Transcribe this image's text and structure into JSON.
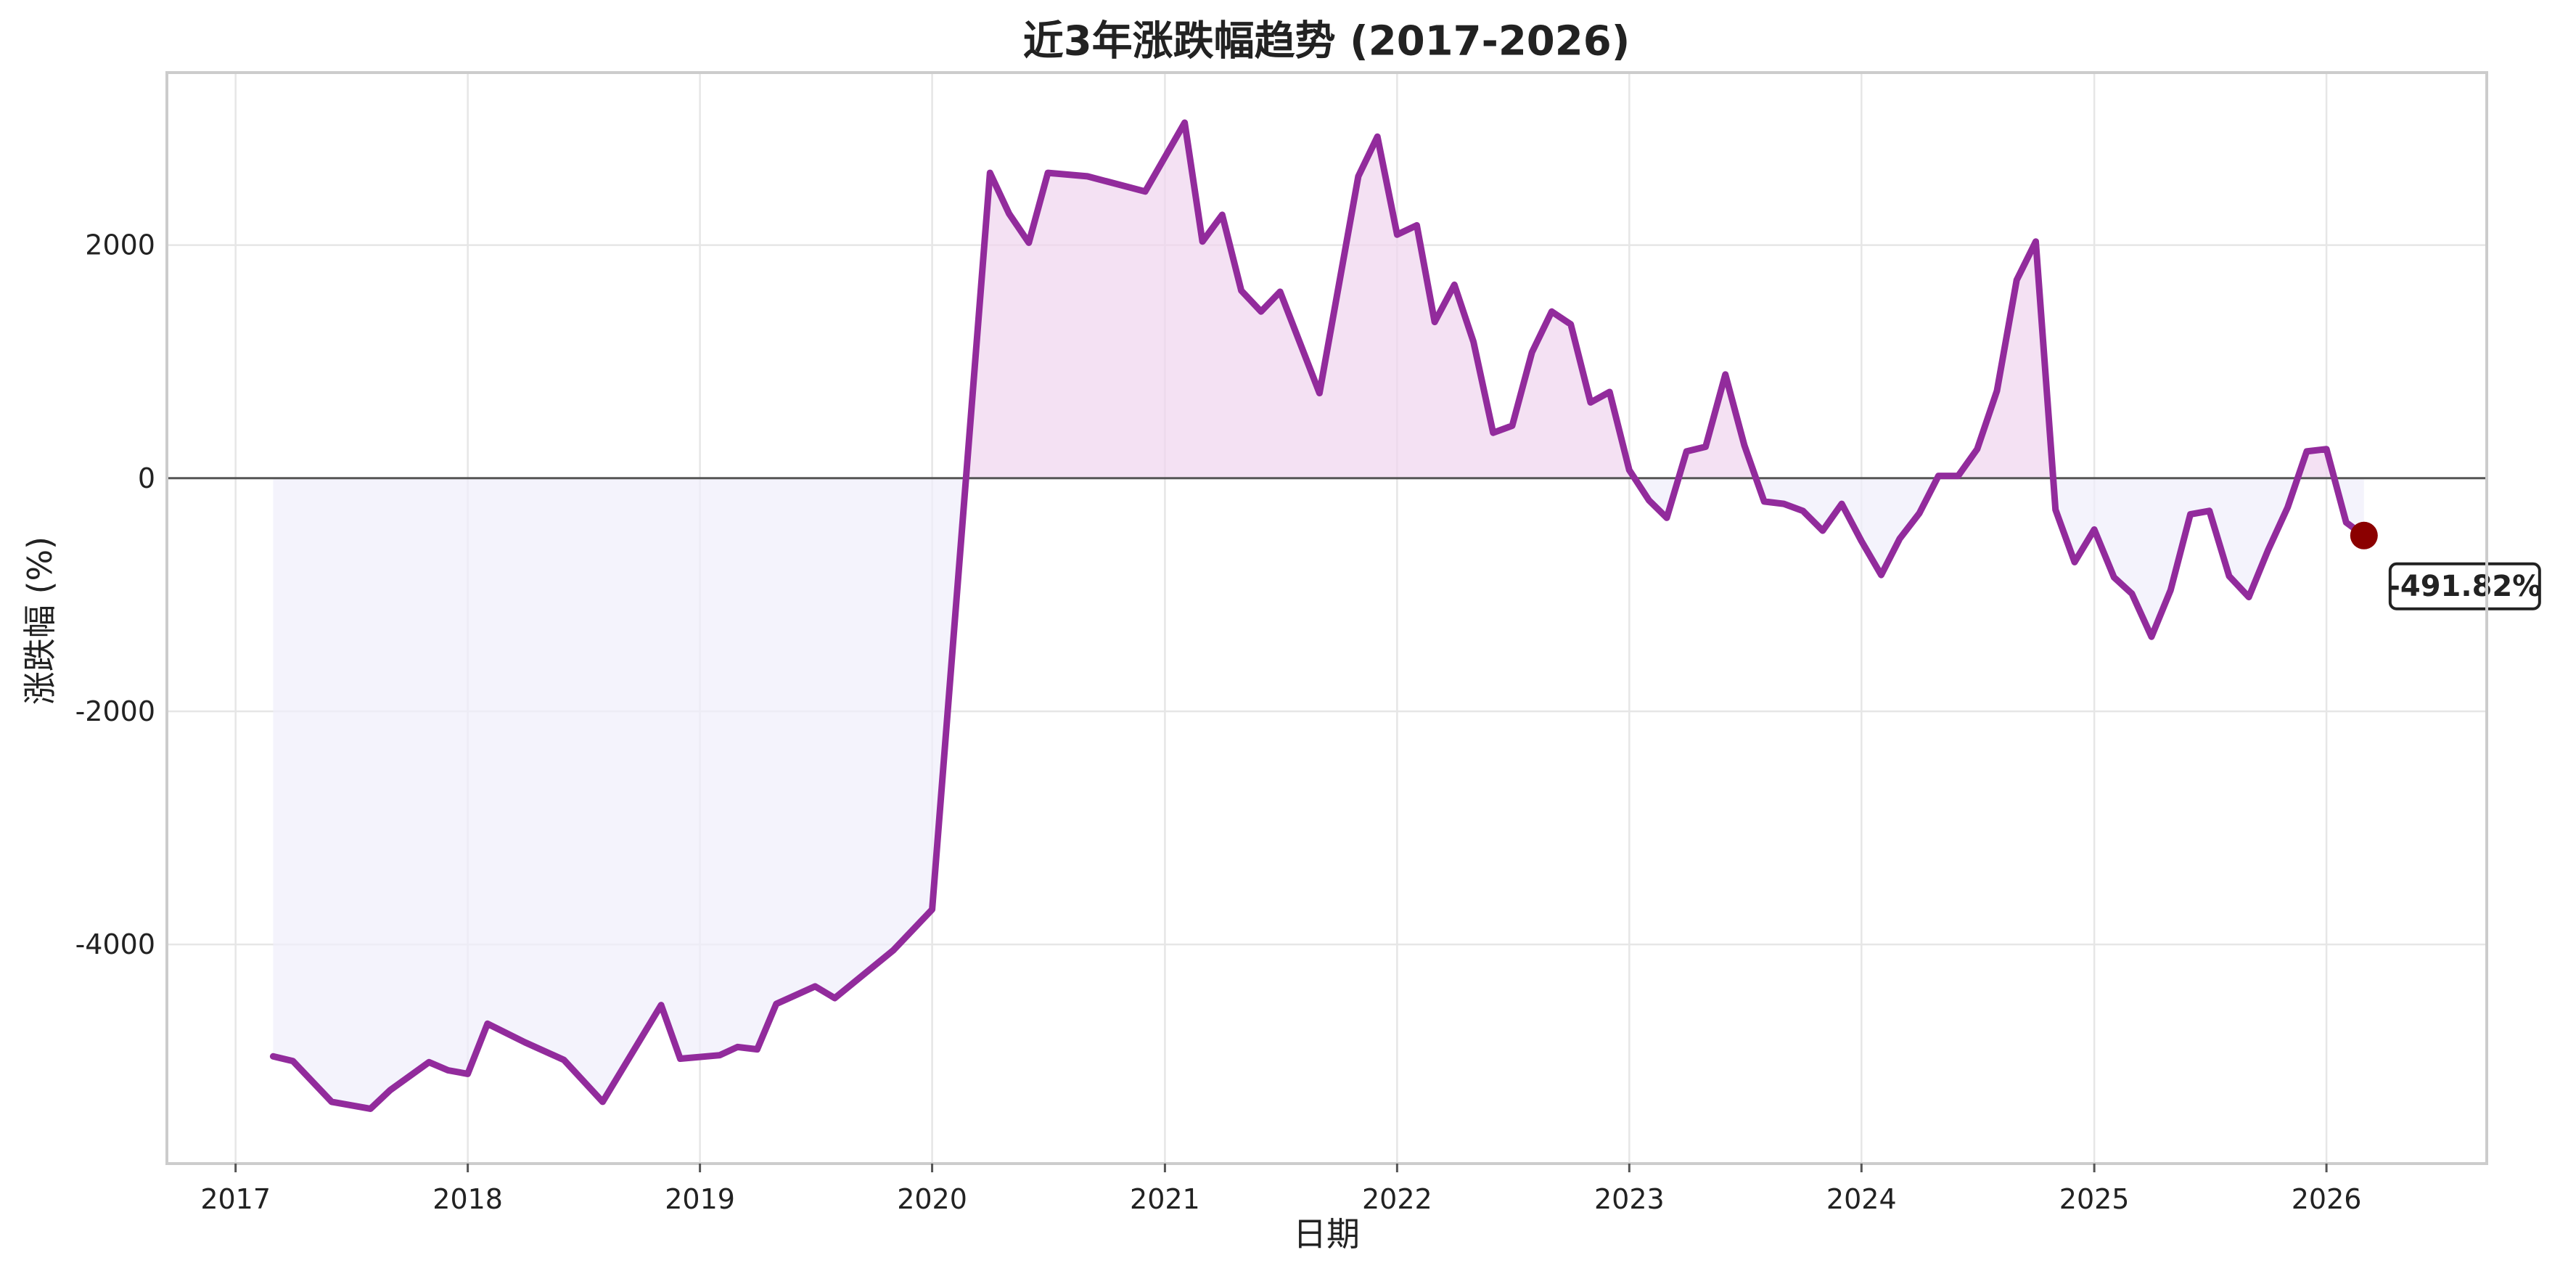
{
  "chart_data": {
    "type": "area",
    "title": "近3年涨跌幅趋势 (2017-2026)",
    "xlabel": "日期",
    "ylabel": "涨跌幅 (%)",
    "grid": true,
    "x_ticks": [
      "2017",
      "2018",
      "2019",
      "2020",
      "2021",
      "2022",
      "2023",
      "2024",
      "2025",
      "2026"
    ],
    "y_ticks": [
      "-4000",
      "-2000",
      "0",
      "2000"
    ],
    "y_tick_values": [
      -4000,
      -2000,
      0,
      2000
    ],
    "xlim": [
      "2016-09-15",
      "2026-09-10"
    ],
    "ylim": [
      -5880,
      3480
    ],
    "colors": {
      "line": "#922b9c",
      "positive_fill": "#efd4ee",
      "negative_fill": "#efeefb",
      "marker": "#8b0000",
      "zero_line": "#555555"
    },
    "series": [
      {
        "dates": [
          "2017-03-01",
          "2017-04-01",
          "2017-06-01",
          "2017-08-01",
          "2017-09-01",
          "2017-11-01",
          "2017-12-01",
          "2018-01-01",
          "2018-02-01",
          "2018-04-01",
          "2018-06-01",
          "2018-08-01",
          "2018-11-01",
          "2018-12-01",
          "2019-02-01",
          "2019-03-01",
          "2019-04-01",
          "2019-05-01",
          "2019-07-01",
          "2019-08-01",
          "2019-11-01",
          "2020-01-01",
          "2020-04-01",
          "2020-05-01",
          "2020-06-01",
          "2020-07-01",
          "2020-09-01",
          "2020-12-01",
          "2021-02-01",
          "2021-03-01",
          "2021-04-01",
          "2021-05-01",
          "2021-06-01",
          "2021-07-01",
          "2021-09-01",
          "2021-11-01",
          "2021-12-01",
          "2022-01-01",
          "2022-02-01",
          "2022-03-01",
          "2022-04-01",
          "2022-05-01",
          "2022-06-01",
          "2022-07-01",
          "2022-08-01",
          "2022-09-01",
          "2022-10-01",
          "2022-11-01",
          "2022-12-01",
          "2023-01-01",
          "2023-02-01",
          "2023-03-01",
          "2023-04-01",
          "2023-05-01",
          "2023-06-01",
          "2023-07-01",
          "2023-08-01",
          "2023-09-01",
          "2023-10-01",
          "2023-11-01",
          "2023-12-01",
          "2024-01-01",
          "2024-02-01",
          "2024-03-01",
          "2024-04-01",
          "2024-05-01",
          "2024-06-01",
          "2024-07-01",
          "2024-08-01",
          "2024-09-01",
          "2024-10-01",
          "2024-11-01",
          "2024-12-01",
          "2025-01-01",
          "2025-02-01",
          "2025-03-01",
          "2025-04-01",
          "2025-05-01",
          "2025-06-01",
          "2025-07-01",
          "2025-08-01",
          "2025-09-01",
          "2025-10-01",
          "2025-11-01",
          "2025-12-01",
          "2026-01-01",
          "2026-02-01",
          "2026-03-01"
        ],
        "values": [
          -4960,
          -5000,
          -5350,
          -5410,
          -5250,
          -5010,
          -5080,
          -5110,
          -4680,
          -4840,
          -4990,
          -5350,
          -4520,
          -4980,
          -4950,
          -4880,
          -4900,
          -4510,
          -4360,
          -4460,
          -4050,
          -3700,
          2620,
          2270,
          2020,
          2620,
          2590,
          2460,
          3050,
          2030,
          2260,
          1610,
          1430,
          1600,
          730,
          2590,
          2930,
          2090,
          2170,
          1340,
          1660,
          1170,
          390,
          450,
          1080,
          1430,
          1320,
          650,
          740,
          70,
          -190,
          -340,
          230,
          270,
          890,
          280,
          -200,
          -220,
          -280,
          -450,
          -220,
          -540,
          -830,
          -520,
          -300,
          20,
          20,
          250,
          750,
          1700,
          2030,
          -270,
          -720,
          -440,
          -850,
          -990,
          -1360,
          -960,
          -310,
          -280,
          -840,
          -1020,
          -620,
          -250,
          230,
          250,
          -380,
          -491.82
        ]
      }
    ],
    "last_point_label": "-491.82%"
  }
}
